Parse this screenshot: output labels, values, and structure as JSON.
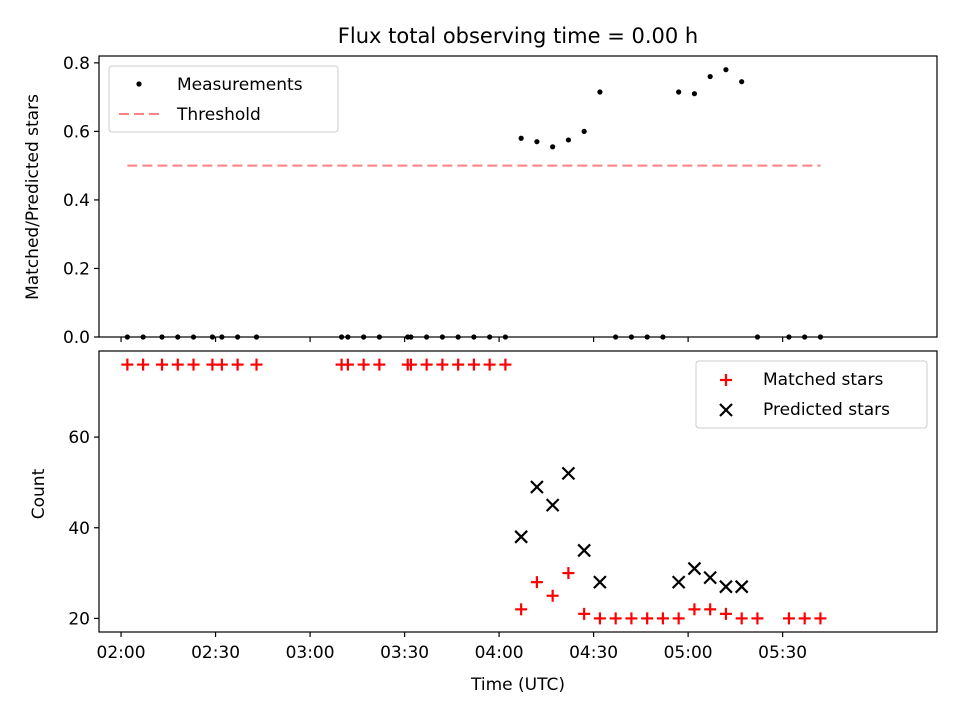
{
  "title": "Flux total observing time = 0.00 h",
  "colors": {
    "measurements": "#000000",
    "threshold": "#ff8080",
    "matched": "#ff0000",
    "predicted": "#000000"
  },
  "chart_data": [
    {
      "type": "scatter",
      "ylabel": "Matched/Predicted stars",
      "ylim": [
        0,
        0.82
      ],
      "yticks": [
        "0.0",
        "0.2",
        "0.4",
        "0.6",
        "0.8"
      ],
      "ytick_values": [
        0,
        0.2,
        0.4,
        0.6,
        0.8
      ],
      "legend_position": "top-left",
      "series": [
        {
          "name": "Measurements",
          "marker": "dot",
          "x": [
            "02:02",
            "02:07",
            "02:13",
            "02:18",
            "02:23",
            "02:29",
            "02:32",
            "02:37",
            "02:43",
            "03:10",
            "03:12",
            "03:17",
            "03:22",
            "03:31",
            "03:32",
            "03:37",
            "03:42",
            "03:47",
            "03:52",
            "03:57",
            "04:02",
            "04:07",
            "04:12",
            "04:17",
            "04:22",
            "04:27",
            "04:32",
            "04:37",
            "04:42",
            "04:47",
            "04:52",
            "04:57",
            "05:02",
            "05:07",
            "05:12",
            "05:17",
            "05:22",
            "05:32",
            "05:37",
            "05:42"
          ],
          "y": [
            0,
            0,
            0,
            0,
            0,
            0,
            0,
            0,
            0,
            0,
            0,
            0,
            0,
            0,
            0,
            0,
            0,
            0,
            0,
            0,
            0,
            0.58,
            0.57,
            0.555,
            0.575,
            0.6,
            0.715,
            0,
            0,
            0,
            0,
            0.715,
            0.71,
            0.76,
            0.78,
            0.745,
            0,
            0,
            0,
            0
          ]
        },
        {
          "name": "Threshold",
          "style": "dashed",
          "x": [
            "02:02",
            "05:42"
          ],
          "y": [
            0.5,
            0.5
          ]
        }
      ]
    },
    {
      "type": "scatter",
      "xlabel": "Time (UTC)",
      "ylabel": "Count",
      "ylim": [
        17,
        79
      ],
      "yticks": [
        "20",
        "40",
        "60"
      ],
      "ytick_values": [
        20,
        40,
        60
      ],
      "xticks": [
        "02:00",
        "02:30",
        "03:00",
        "03:30",
        "04:00",
        "04:30",
        "05:00",
        "05:30"
      ],
      "xlim": [
        "01:53",
        "06:19"
      ],
      "legend_position": "top-right",
      "series": [
        {
          "name": "Matched stars",
          "marker": "plus",
          "x": [
            "02:02",
            "02:07",
            "02:13",
            "02:18",
            "02:23",
            "02:29",
            "02:32",
            "02:37",
            "02:43",
            "03:10",
            "03:12",
            "03:17",
            "03:22",
            "03:31",
            "03:32",
            "03:37",
            "03:42",
            "03:47",
            "03:52",
            "03:57",
            "04:02",
            "04:07",
            "04:12",
            "04:17",
            "04:22",
            "04:27",
            "04:32",
            "04:37",
            "04:42",
            "04:47",
            "04:52",
            "04:57",
            "05:02",
            "05:07",
            "05:12",
            "05:17",
            "05:22",
            "05:32",
            "05:37",
            "05:42"
          ],
          "y": [
            76,
            76,
            76,
            76,
            76,
            76,
            76,
            76,
            76,
            76,
            76,
            76,
            76,
            76,
            76,
            76,
            76,
            76,
            76,
            76,
            76,
            22,
            28,
            25,
            30,
            21,
            20,
            20,
            20,
            20,
            20,
            20,
            22,
            22,
            21,
            20,
            20,
            20,
            20,
            20
          ]
        },
        {
          "name": "Predicted stars",
          "marker": "x",
          "x": [
            "04:07",
            "04:12",
            "04:17",
            "04:22",
            "04:27",
            "04:32",
            "04:57",
            "05:02",
            "05:07",
            "05:12",
            "05:17"
          ],
          "y": [
            38,
            49,
            45,
            52,
            35,
            28,
            28,
            31,
            29,
            27,
            27
          ]
        }
      ]
    }
  ]
}
